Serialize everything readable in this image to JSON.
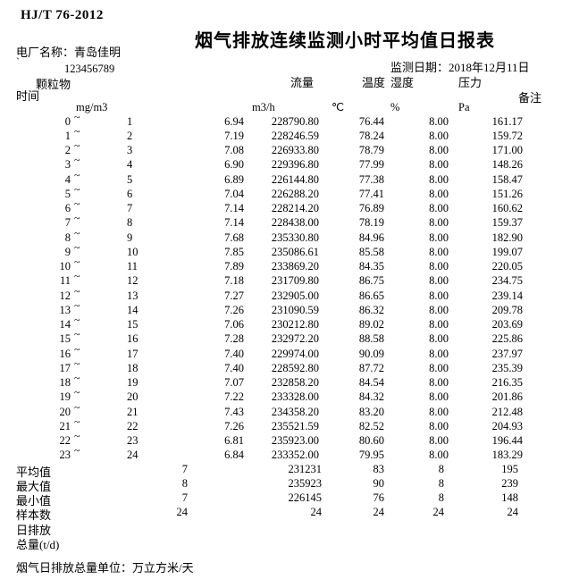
{
  "header": {
    "standard_no": "HJ/T 76-2012",
    "title": "烟气排放连续监测小时平均值日报表",
    "plant_name_line": "电厂名称：青岛佳明",
    "tick_mark": "`",
    "plant_code": "123456789",
    "monitor_date_line": "监测日期：2018年12月11日"
  },
  "columns": {
    "time": "时间",
    "pm": "颗粒物",
    "flow": "流量",
    "temperature": "温度",
    "humidity": "湿度",
    "pressure": "压力",
    "remark": "备注",
    "tilde": "~",
    "units": {
      "pm": "mg/m3",
      "flow": "m3/h",
      "temperature": "℃",
      "humidity": "%",
      "pressure": "Pa"
    }
  },
  "rows": [
    {
      "start": "0",
      "end": "1",
      "pm": "6.94",
      "flow": "228790.80",
      "temp": "76.44",
      "hum": "8.00",
      "press": "161.17"
    },
    {
      "start": "1",
      "end": "2",
      "pm": "7.19",
      "flow": "228246.59",
      "temp": "78.24",
      "hum": "8.00",
      "press": "159.72"
    },
    {
      "start": "2",
      "end": "3",
      "pm": "7.08",
      "flow": "226933.80",
      "temp": "78.79",
      "hum": "8.00",
      "press": "171.00"
    },
    {
      "start": "3",
      "end": "4",
      "pm": "6.90",
      "flow": "229396.80",
      "temp": "77.99",
      "hum": "8.00",
      "press": "148.26"
    },
    {
      "start": "4",
      "end": "5",
      "pm": "6.89",
      "flow": "226144.80",
      "temp": "77.38",
      "hum": "8.00",
      "press": "158.47"
    },
    {
      "start": "5",
      "end": "6",
      "pm": "7.04",
      "flow": "226288.20",
      "temp": "77.41",
      "hum": "8.00",
      "press": "151.26"
    },
    {
      "start": "6",
      "end": "7",
      "pm": "7.14",
      "flow": "228214.20",
      "temp": "76.89",
      "hum": "8.00",
      "press": "160.62"
    },
    {
      "start": "7",
      "end": "8",
      "pm": "7.14",
      "flow": "228438.00",
      "temp": "78.19",
      "hum": "8.00",
      "press": "159.37"
    },
    {
      "start": "8",
      "end": "9",
      "pm": "7.68",
      "flow": "235330.80",
      "temp": "84.96",
      "hum": "8.00",
      "press": "182.90"
    },
    {
      "start": "9",
      "end": "10",
      "pm": "7.85",
      "flow": "235086.61",
      "temp": "85.58",
      "hum": "8.00",
      "press": "199.07"
    },
    {
      "start": "10",
      "end": "11",
      "pm": "7.89",
      "flow": "233869.20",
      "temp": "84.35",
      "hum": "8.00",
      "press": "220.05"
    },
    {
      "start": "11",
      "end": "12",
      "pm": "7.18",
      "flow": "231709.80",
      "temp": "86.75",
      "hum": "8.00",
      "press": "234.75"
    },
    {
      "start": "12",
      "end": "13",
      "pm": "7.27",
      "flow": "232905.00",
      "temp": "86.65",
      "hum": "8.00",
      "press": "239.14"
    },
    {
      "start": "13",
      "end": "14",
      "pm": "7.26",
      "flow": "231090.59",
      "temp": "86.32",
      "hum": "8.00",
      "press": "209.78"
    },
    {
      "start": "14",
      "end": "15",
      "pm": "7.06",
      "flow": "230212.80",
      "temp": "89.02",
      "hum": "8.00",
      "press": "203.69"
    },
    {
      "start": "15",
      "end": "16",
      "pm": "7.28",
      "flow": "232972.20",
      "temp": "88.58",
      "hum": "8.00",
      "press": "225.86"
    },
    {
      "start": "16",
      "end": "17",
      "pm": "7.40",
      "flow": "229974.00",
      "temp": "90.09",
      "hum": "8.00",
      "press": "237.97"
    },
    {
      "start": "17",
      "end": "18",
      "pm": "7.40",
      "flow": "228592.80",
      "temp": "87.72",
      "hum": "8.00",
      "press": "235.39"
    },
    {
      "start": "18",
      "end": "19",
      "pm": "7.07",
      "flow": "232858.20",
      "temp": "84.54",
      "hum": "8.00",
      "press": "216.35"
    },
    {
      "start": "19",
      "end": "20",
      "pm": "7.22",
      "flow": "233328.00",
      "temp": "84.32",
      "hum": "8.00",
      "press": "201.86"
    },
    {
      "start": "20",
      "end": "21",
      "pm": "7.43",
      "flow": "234358.20",
      "temp": "83.20",
      "hum": "8.00",
      "press": "212.48"
    },
    {
      "start": "21",
      "end": "22",
      "pm": "7.26",
      "flow": "235521.59",
      "temp": "82.52",
      "hum": "8.00",
      "press": "204.93"
    },
    {
      "start": "22",
      "end": "23",
      "pm": "6.81",
      "flow": "235923.00",
      "temp": "80.60",
      "hum": "8.00",
      "press": "196.44"
    },
    {
      "start": "23",
      "end": "24",
      "pm": "6.84",
      "flow": "233352.00",
      "temp": "79.95",
      "hum": "8.00",
      "press": "183.29"
    }
  ],
  "summary": [
    {
      "label": "平均值",
      "pm": "7",
      "flow": "231231",
      "temp": "83",
      "hum": "8",
      "press": "195"
    },
    {
      "label": "最大值",
      "pm": "8",
      "flow": "235923",
      "temp": "90",
      "hum": "8",
      "press": "239"
    },
    {
      "label": "最小值",
      "pm": "7",
      "flow": "226145",
      "temp": "76",
      "hum": "8",
      "press": "148"
    },
    {
      "label": "样本数",
      "pm": "24",
      "flow": "24",
      "temp": "24",
      "hum": "24",
      "press": "24"
    },
    {
      "label": "日排放",
      "pm": "",
      "flow": "",
      "temp": "",
      "hum": "",
      "press": ""
    },
    {
      "label": "总量(t/d)",
      "pm": "",
      "flow": "",
      "temp": "",
      "hum": "",
      "press": ""
    }
  ],
  "footer": {
    "note": "烟气日排放总量单位：万立方米/天"
  }
}
